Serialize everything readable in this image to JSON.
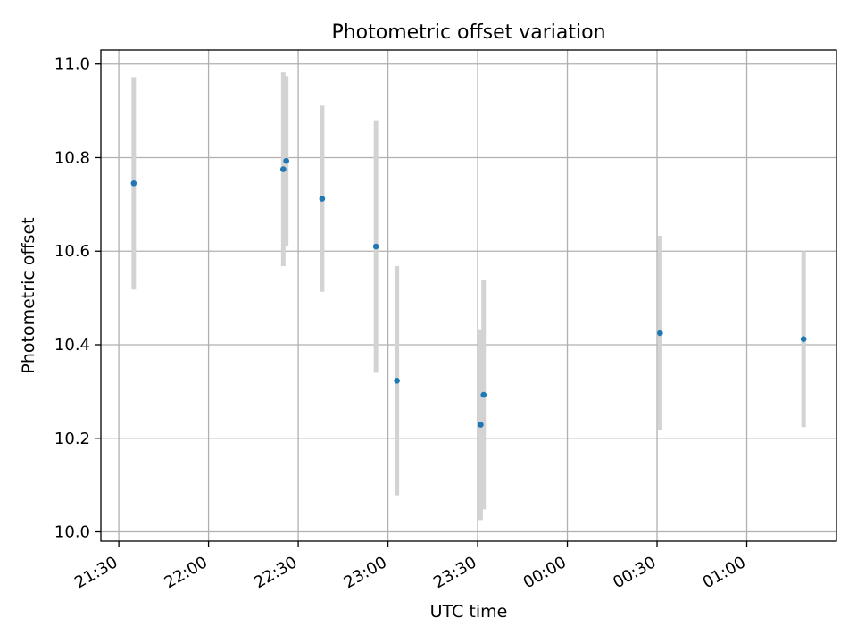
{
  "chart_data": {
    "type": "scatter",
    "title": "Photometric offset variation",
    "xlabel": "UTC time",
    "ylabel": "Photometric offset",
    "x_ticks": [
      "21:30",
      "22:00",
      "22:30",
      "23:00",
      "23:30",
      "00:00",
      "00:30",
      "01:00"
    ],
    "y_ticks": [
      "10.0",
      "10.2",
      "10.4",
      "10.6",
      "10.8",
      "11.0"
    ],
    "xlim": [
      "21:24",
      "01:30"
    ],
    "ylim": [
      9.98,
      11.03
    ],
    "grid": true,
    "colors": {
      "point": "#1f77b4",
      "errorbar": "#d3d3d3"
    },
    "series": [
      {
        "points": [
          {
            "x": "21:35",
            "y": 10.745,
            "err": 0.227
          },
          {
            "x": "22:25",
            "y": 10.775,
            "err": 0.207
          },
          {
            "x": "22:26",
            "y": 10.793,
            "err": 0.181
          },
          {
            "x": "22:38",
            "y": 10.712,
            "err": 0.199
          },
          {
            "x": "22:56",
            "y": 10.61,
            "err": 0.27
          },
          {
            "x": "23:03",
            "y": 10.323,
            "err": 0.245
          },
          {
            "x": "23:31",
            "y": 10.229,
            "err": 0.204
          },
          {
            "x": "23:32",
            "y": 10.293,
            "err": 0.245
          },
          {
            "x": "00:31",
            "y": 10.425,
            "err": 0.208
          },
          {
            "x": "01:19",
            "y": 10.412,
            "err": 0.188
          }
        ]
      }
    ]
  }
}
